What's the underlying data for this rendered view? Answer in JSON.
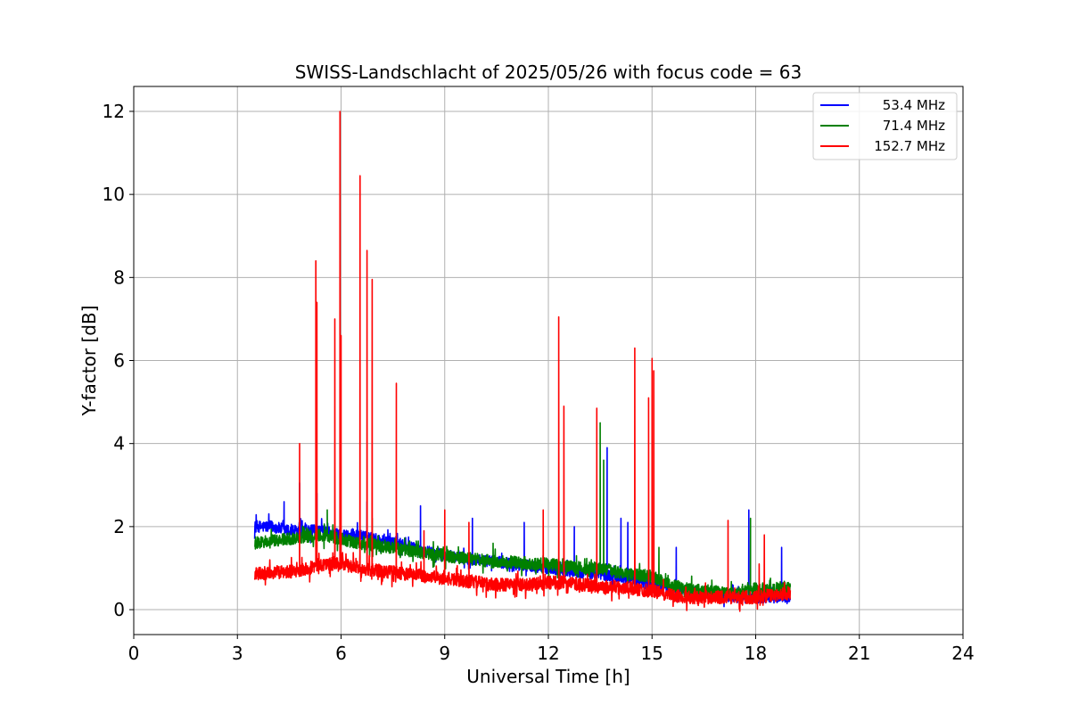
{
  "chart_data": {
    "type": "line",
    "title": "SWISS-Landschlacht of 2025/05/26 with focus code = 63",
    "xlabel": "Universal Time [h]",
    "ylabel": "Y-factor [dB]",
    "xlim": [
      0,
      24
    ],
    "ylim": [
      -0.6,
      12.6
    ],
    "xticks": [
      0,
      3,
      6,
      9,
      12,
      15,
      18,
      21,
      24
    ],
    "yticks": [
      0,
      2,
      4,
      6,
      8,
      10,
      12
    ],
    "grid": true,
    "legend_position": "top-right",
    "series": [
      {
        "name": "53.4 MHz",
        "color": "#0000ff",
        "x": [
          3.5,
          4.0,
          4.5,
          5.0,
          5.5,
          6.0,
          6.5,
          7.0,
          7.5,
          8.0,
          8.5,
          9.0,
          9.5,
          10.0,
          10.5,
          11.0,
          11.5,
          12.0,
          12.5,
          13.0,
          13.5,
          14.0,
          14.5,
          15.0,
          15.5,
          16.0,
          16.5,
          17.0,
          17.5,
          18.0,
          18.5,
          19.0
        ],
        "y": [
          2.0,
          2.0,
          1.9,
          1.9,
          1.9,
          1.8,
          1.8,
          1.7,
          1.6,
          1.5,
          1.4,
          1.3,
          1.25,
          1.2,
          1.15,
          1.1,
          1.05,
          1.0,
          0.95,
          0.9,
          0.85,
          0.8,
          0.7,
          0.6,
          0.5,
          0.45,
          0.4,
          0.35,
          0.3,
          0.3,
          0.3,
          0.3
        ],
        "spikes": [
          [
            4.35,
            2.6
          ],
          [
            4.8,
            3.05
          ],
          [
            5.3,
            2.8
          ],
          [
            6.75,
            2.6
          ],
          [
            8.3,
            2.5
          ],
          [
            9.8,
            2.2
          ],
          [
            11.3,
            2.1
          ],
          [
            12.75,
            2.0
          ],
          [
            13.7,
            3.9
          ],
          [
            14.1,
            2.2
          ],
          [
            14.3,
            2.1
          ],
          [
            15.7,
            1.5
          ],
          [
            17.8,
            2.4
          ],
          [
            18.75,
            1.5
          ]
        ]
      },
      {
        "name": "71.4 MHz",
        "color": "#008000",
        "x": [
          3.5,
          4.0,
          4.5,
          5.0,
          5.5,
          6.0,
          6.5,
          7.0,
          7.5,
          8.0,
          8.5,
          9.0,
          9.5,
          10.0,
          10.5,
          11.0,
          11.5,
          12.0,
          12.5,
          13.0,
          13.5,
          14.0,
          14.5,
          15.0,
          15.5,
          16.0,
          16.5,
          17.0,
          17.5,
          18.0,
          18.5,
          19.0
        ],
        "y": [
          1.6,
          1.65,
          1.7,
          1.75,
          1.8,
          1.7,
          1.6,
          1.55,
          1.5,
          1.4,
          1.35,
          1.3,
          1.25,
          1.2,
          1.15,
          1.15,
          1.1,
          1.1,
          1.05,
          1.0,
          1.0,
          0.9,
          0.85,
          0.8,
          0.6,
          0.5,
          0.45,
          0.4,
          0.4,
          0.5,
          0.5,
          0.55
        ],
        "spikes": [
          [
            5.6,
            2.4
          ],
          [
            6.9,
            2.2
          ],
          [
            10.4,
            1.6
          ],
          [
            13.5,
            4.5
          ],
          [
            13.6,
            3.6
          ],
          [
            15.2,
            1.5
          ],
          [
            17.85,
            2.2
          ]
        ]
      },
      {
        "name": "152.7 MHz",
        "color": "#ff0000",
        "x": [
          3.5,
          4.0,
          4.5,
          5.0,
          5.5,
          6.0,
          6.5,
          7.0,
          7.5,
          8.0,
          8.5,
          9.0,
          9.5,
          10.0,
          10.5,
          11.0,
          11.5,
          12.0,
          12.5,
          13.0,
          13.5,
          14.0,
          14.5,
          15.0,
          15.5,
          16.0,
          16.5,
          17.0,
          17.5,
          18.0,
          18.5,
          19.0
        ],
        "y": [
          0.85,
          0.9,
          0.9,
          1.0,
          1.1,
          1.1,
          1.0,
          0.95,
          0.9,
          0.85,
          0.8,
          0.75,
          0.7,
          0.65,
          0.6,
          0.6,
          0.6,
          0.65,
          0.65,
          0.6,
          0.55,
          0.55,
          0.5,
          0.45,
          0.35,
          0.3,
          0.3,
          0.3,
          0.3,
          0.3,
          0.35,
          0.4
        ],
        "spikes": [
          [
            4.8,
            4.0
          ],
          [
            5.27,
            8.4
          ],
          [
            5.3,
            7.4
          ],
          [
            5.82,
            7.0
          ],
          [
            5.97,
            12.0
          ],
          [
            6.0,
            6.6
          ],
          [
            6.55,
            10.45
          ],
          [
            6.75,
            8.65
          ],
          [
            6.9,
            7.95
          ],
          [
            7.6,
            5.45
          ],
          [
            8.4,
            1.9
          ],
          [
            9.0,
            2.4
          ],
          [
            9.7,
            2.1
          ],
          [
            11.85,
            2.4
          ],
          [
            12.3,
            7.05
          ],
          [
            12.45,
            4.9
          ],
          [
            13.4,
            4.85
          ],
          [
            14.5,
            6.3
          ],
          [
            14.9,
            5.1
          ],
          [
            15.0,
            6.05
          ],
          [
            15.05,
            5.75
          ],
          [
            17.2,
            2.15
          ],
          [
            18.1,
            1.1
          ],
          [
            18.25,
            1.8
          ]
        ]
      }
    ]
  }
}
